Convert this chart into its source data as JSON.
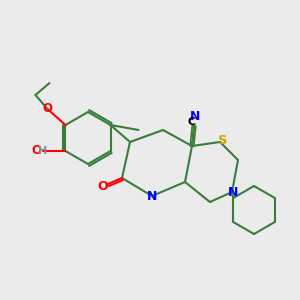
{
  "background_color": "#ebebeb",
  "bond_color": "#3a7d3a",
  "atom_colors": {
    "N": "#0000ff",
    "O": "#ff0000",
    "S": "#ccaa00",
    "H": "#888888",
    "C_label": "#000000"
  },
  "title": "",
  "figsize": [
    3.0,
    3.0
  ],
  "dpi": 100
}
